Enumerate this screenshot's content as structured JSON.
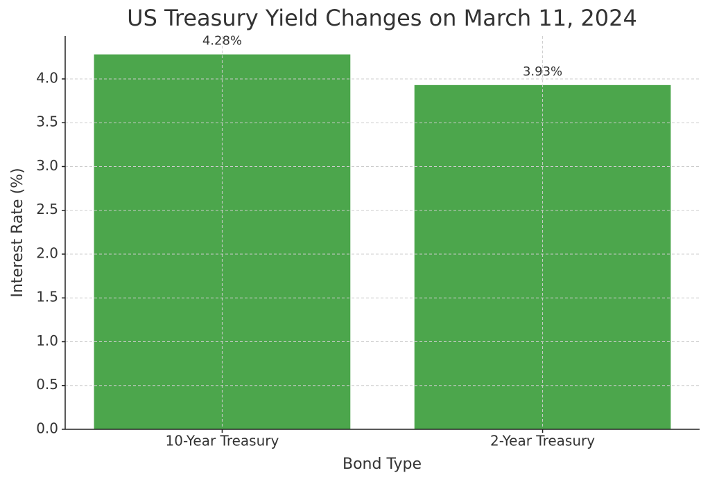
{
  "chart_data": {
    "type": "bar",
    "title": "US Treasury Yield Changes on March 11, 2024",
    "x_label": "Bond Type",
    "y_label": "Interest Rate (%)",
    "categories": [
      "10-Year Treasury",
      "2-Year Treasury"
    ],
    "values": [
      4.28,
      3.93
    ],
    "value_labels": [
      "4.28%",
      "3.93%"
    ],
    "color": "#4ca64c",
    "ylim": [
      0,
      4.49
    ],
    "yticks": [
      {
        "value": 0,
        "label": "0.0"
      },
      0.5,
      {
        "value": 1,
        "label": "1.0"
      },
      1.5,
      {
        "value": 2,
        "label": "2.0"
      },
      2.5,
      {
        "value": 3,
        "label": "3.0"
      },
      3.5,
      {
        "value": 4,
        "label": "4.0"
      }
    ],
    "grid": true
  }
}
